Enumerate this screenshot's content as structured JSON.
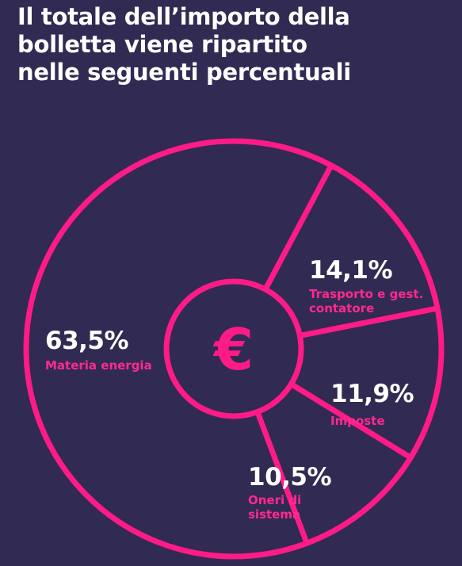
{
  "title_lines": [
    "Il totale dell’importo della",
    "bolletta viene ripartito",
    "nelle seguenti percentuali"
  ],
  "center_symbol": "€",
  "colors": {
    "background": "#312a52",
    "accent": "#ff1b87",
    "text": "#ffffff"
  },
  "chart_data": {
    "type": "pie",
    "categories": [
      "Trasporto e gest. contatore",
      "Imposte",
      "Oneri di sistema",
      "Materia energia"
    ],
    "values": [
      14.1,
      11.9,
      10.5,
      63.5
    ],
    "value_labels": [
      "14,1%",
      "11,9%",
      "10,5%",
      "63,5%"
    ],
    "label_lines": [
      [
        "Trasporto e gest.",
        "contatore"
      ],
      [
        "Imposte"
      ],
      [
        "Oneri di",
        "sistema"
      ],
      [
        "Materia energia"
      ]
    ],
    "unit": "%",
    "style": "outline ring with center circle",
    "legend": "none"
  }
}
